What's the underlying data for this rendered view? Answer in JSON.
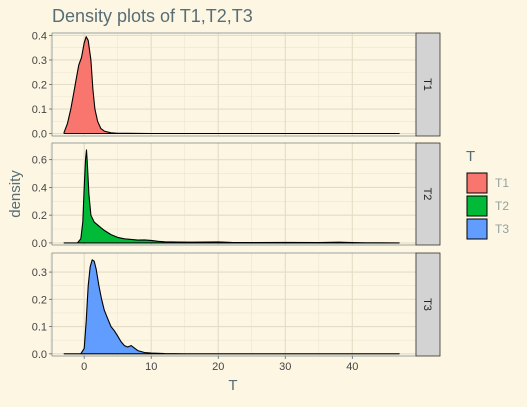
{
  "chart_data": {
    "type": "area",
    "title": "Density plots of T1,T2,T3",
    "xlabel": "T",
    "ylabel": "density",
    "xlim": [
      -4.8,
      49.5
    ],
    "x_ticks": [
      0,
      10,
      20,
      30,
      40
    ],
    "x_tick_labels": [
      "0",
      "10",
      "20",
      "30",
      "40"
    ],
    "grid": true,
    "legend": {
      "title": "T",
      "position": "right",
      "entries": [
        "T1",
        "T2",
        "T3"
      ]
    },
    "colors": {
      "T1": "#f8766d",
      "T2": "#00ba38",
      "T3": "#619cff"
    },
    "panels": [
      {
        "name": "T1",
        "strip_label": "T1",
        "ylim": [
          -0.01,
          0.41
        ],
        "y_ticks": [
          0.0,
          0.1,
          0.2,
          0.3,
          0.4
        ],
        "y_tick_labels": [
          "0.0",
          "0.1",
          "0.2",
          "0.3",
          "0.4"
        ],
        "x": [
          -3,
          -2.5,
          -2,
          -1.6,
          -1.2,
          -0.8,
          -0.4,
          0,
          0.3,
          0.6,
          1,
          1.3,
          1.6,
          2,
          2.5,
          3,
          4,
          5,
          10,
          20,
          30,
          40,
          47
        ],
        "y": [
          0.005,
          0.04,
          0.1,
          0.16,
          0.22,
          0.28,
          0.31,
          0.37,
          0.395,
          0.38,
          0.3,
          0.18,
          0.1,
          0.05,
          0.02,
          0.01,
          0.003,
          0.001,
          0,
          0,
          0,
          0,
          0
        ]
      },
      {
        "name": "T2",
        "strip_label": "T2",
        "ylim": [
          -0.015,
          0.72
        ],
        "y_ticks": [
          0.0,
          0.2,
          0.4,
          0.6
        ],
        "y_tick_labels": [
          "0.0",
          "0.2",
          "0.4",
          "0.6"
        ],
        "x": [
          -3,
          -1,
          -0.5,
          -0.2,
          0,
          0.2,
          0.35,
          0.5,
          0.7,
          1,
          1.5,
          2,
          2.5,
          3,
          4,
          5,
          6,
          7,
          8,
          9,
          10,
          11,
          12,
          14,
          16,
          18,
          20,
          22,
          25,
          30,
          35,
          38,
          40,
          42,
          47
        ],
        "y": [
          0,
          0,
          0.03,
          0.15,
          0.4,
          0.6,
          0.67,
          0.55,
          0.35,
          0.2,
          0.15,
          0.13,
          0.11,
          0.09,
          0.06,
          0.04,
          0.03,
          0.025,
          0.02,
          0.022,
          0.018,
          0.012,
          0.008,
          0.006,
          0.005,
          0.006,
          0.007,
          0.004,
          0.003,
          0.004,
          0.003,
          0.005,
          0.002,
          0.001,
          0
        ]
      },
      {
        "name": "T3",
        "strip_label": "T3",
        "ylim": [
          -0.008,
          0.37
        ],
        "y_ticks": [
          0.0,
          0.1,
          0.2,
          0.3
        ],
        "y_tick_labels": [
          "0.0",
          "0.1",
          "0.2",
          "0.3"
        ],
        "x": [
          -3,
          -0.5,
          0,
          0.3,
          0.6,
          0.9,
          1.2,
          1.5,
          1.8,
          2.2,
          2.6,
          3,
          3.5,
          4,
          4.5,
          5,
          5.5,
          6,
          6.5,
          7,
          8,
          9,
          10,
          12,
          15,
          20,
          30,
          40,
          47
        ],
        "y": [
          0,
          0,
          0.02,
          0.12,
          0.25,
          0.32,
          0.345,
          0.34,
          0.31,
          0.25,
          0.2,
          0.16,
          0.13,
          0.1,
          0.085,
          0.065,
          0.045,
          0.03,
          0.025,
          0.03,
          0.012,
          0.005,
          0.003,
          0.001,
          0,
          0,
          0,
          0,
          0
        ]
      }
    ]
  }
}
